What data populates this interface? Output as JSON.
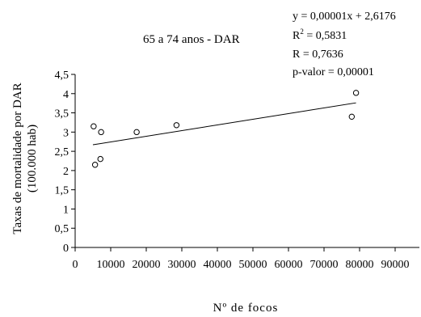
{
  "chart_data": {
    "type": "scatter",
    "title": "65 a 74 anos - DAR",
    "ylabel_line1": "Taxas de mortalidade por DAR",
    "ylabel_line2": "(100.000 hab)",
    "xlabel": "Nº de focos",
    "xlim": [
      0,
      90000
    ],
    "ylim": [
      0,
      4.5
    ],
    "x_ticks": [
      0,
      10000,
      20000,
      30000,
      40000,
      50000,
      60000,
      70000,
      80000,
      90000
    ],
    "x_tick_labels": [
      "0",
      "10000",
      "20000",
      "30000",
      "40000",
      "50000",
      "60000",
      "70000",
      "80000",
      "90000"
    ],
    "y_ticks": [
      0,
      0.5,
      1,
      1.5,
      2,
      2.5,
      3,
      3.5,
      4,
      4.5
    ],
    "y_tick_labels": [
      "0",
      "0,5",
      "1",
      "1,5",
      "2",
      "2,5",
      "3",
      "3,5",
      "4",
      "4,5"
    ],
    "points": [
      {
        "x": 5200,
        "y": 3.15
      },
      {
        "x": 7300,
        "y": 3.0
      },
      {
        "x": 5600,
        "y": 2.15
      },
      {
        "x": 7100,
        "y": 2.3
      },
      {
        "x": 17300,
        "y": 3.0
      },
      {
        "x": 28500,
        "y": 3.18
      },
      {
        "x": 77800,
        "y": 3.4
      },
      {
        "x": 79000,
        "y": 4.02
      }
    ],
    "trendline": {
      "x_start": 5000,
      "y_start": 2.67,
      "x_end": 79000,
      "y_end": 3.76
    },
    "stats": {
      "equation": "y = 0,00001x + 2,6176",
      "r2_prefix": "R",
      "r2_sup": "2",
      "r2_value": " = 0,5831",
      "r": "R = 0,7636",
      "p_value": "p-valor = 0,00001"
    },
    "grid": false,
    "legend": "none"
  }
}
